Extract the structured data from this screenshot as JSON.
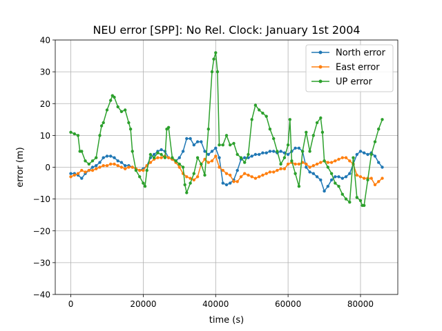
{
  "chart_data": {
    "type": "line",
    "title": "NEU error [SPP]: No Rel. Clock: January 1st 2004",
    "xlabel": "time (s)",
    "ylabel": "error (m)",
    "xlim": [
      -4300,
      90300
    ],
    "ylim": [
      -40,
      40
    ],
    "xticks": [
      0,
      20000,
      40000,
      60000,
      80000
    ],
    "yticks": [
      -40,
      -30,
      -20,
      -10,
      0,
      10,
      20,
      30,
      40
    ],
    "xtick_labels": [
      "0",
      "20000",
      "40000",
      "60000",
      "80000"
    ],
    "ytick_labels": [
      "−40",
      "−30",
      "−20",
      "−10",
      "0",
      "10",
      "20",
      "30",
      "40"
    ],
    "grid": true,
    "legend_position": "top-right",
    "series": [
      {
        "name": "North error",
        "color": "#1f77b4",
        "x": [
          0,
          1000,
          2000,
          3000,
          4000,
          5000,
          6000,
          7000,
          8000,
          9000,
          10000,
          11000,
          12000,
          13000,
          14000,
          15000,
          16000,
          17000,
          18000,
          19000,
          20000,
          21000,
          22000,
          23000,
          24000,
          25000,
          26000,
          27000,
          28000,
          29000,
          30000,
          31000,
          32000,
          33000,
          34000,
          35000,
          36000,
          37000,
          38000,
          39000,
          40000,
          41000,
          42000,
          43000,
          44000,
          45000,
          46000,
          47000,
          48000,
          49000,
          50000,
          51000,
          52000,
          53000,
          54000,
          55000,
          56000,
          57000,
          58000,
          59000,
          60000,
          61000,
          62000,
          63000,
          64000,
          65000,
          66000,
          67000,
          68000,
          69000,
          70000,
          71000,
          72000,
          73000,
          74000,
          75000,
          76000,
          77000,
          78000,
          79000,
          80000,
          81000,
          82000,
          83000,
          84000,
          85000,
          86000
        ],
        "values": [
          -2,
          -2,
          -2.5,
          -3.5,
          -2,
          -1,
          0,
          0.5,
          1.5,
          3,
          3.5,
          3.5,
          3,
          2,
          1.5,
          0.5,
          0.5,
          0,
          -0.5,
          -1,
          -0.5,
          0.5,
          3,
          4,
          5,
          5.5,
          5,
          3,
          2.5,
          2,
          3,
          5,
          9,
          9,
          7,
          8,
          8,
          5,
          4,
          5,
          6,
          3,
          -5,
          -5.5,
          -5,
          -4,
          -1,
          2.5,
          3,
          3,
          3.5,
          4,
          4,
          4.5,
          4.5,
          5,
          5,
          4.5,
          5,
          4.5,
          4,
          5,
          6,
          6,
          5,
          0,
          -1.5,
          -2,
          -3,
          -4,
          -7.5,
          -6,
          -4,
          -3,
          -3,
          -3.5,
          -3,
          -2,
          1,
          4,
          5,
          4.5,
          4,
          4.5,
          3.5,
          1.5,
          0
        ]
      },
      {
        "name": "East error",
        "color": "#ff7f0e",
        "x": [
          0,
          1000,
          2000,
          3000,
          4000,
          5000,
          6000,
          7000,
          8000,
          9000,
          10000,
          11000,
          12000,
          13000,
          14000,
          15000,
          16000,
          17000,
          18000,
          19000,
          20000,
          21000,
          22000,
          23000,
          24000,
          25000,
          26000,
          27000,
          28000,
          29000,
          30000,
          31000,
          32000,
          33000,
          34000,
          35000,
          36000,
          37000,
          38000,
          39000,
          40000,
          41000,
          42000,
          43000,
          44000,
          45000,
          46000,
          47000,
          48000,
          49000,
          50000,
          51000,
          52000,
          53000,
          54000,
          55000,
          56000,
          57000,
          58000,
          59000,
          60000,
          61000,
          62000,
          63000,
          64000,
          65000,
          66000,
          67000,
          68000,
          69000,
          70000,
          71000,
          72000,
          73000,
          74000,
          75000,
          76000,
          77000,
          78000,
          79000,
          80000,
          81000,
          82000,
          83000,
          84000,
          85000,
          86000
        ],
        "values": [
          -3,
          -2.5,
          -2,
          -1,
          -1.5,
          -1,
          -1,
          -0.5,
          0,
          0.5,
          0.5,
          1,
          1,
          0.5,
          0,
          -0.5,
          0,
          0,
          -0.5,
          -1,
          -1,
          0.5,
          1.5,
          2.5,
          3,
          3,
          3.5,
          3,
          2.5,
          1.5,
          0,
          -2,
          -3,
          -3.5,
          -4,
          -3,
          1,
          2.5,
          1.5,
          2,
          3.5,
          0,
          -1,
          -2,
          -2.5,
          -4.5,
          -4.5,
          -3,
          -2,
          -2.5,
          -3,
          -3.5,
          -3,
          -2.5,
          -2,
          -1.5,
          -1.5,
          -1,
          -0.5,
          -0.5,
          1,
          1.5,
          1,
          1,
          1.5,
          1,
          0,
          0.5,
          1,
          1.5,
          2,
          1.5,
          1.5,
          2,
          2.5,
          3,
          3,
          2,
          1,
          -2.5,
          -3,
          -3.5,
          -3.5,
          -3.5,
          -5.5,
          -4.5,
          -3.5
        ]
      },
      {
        "name": "UP error",
        "color": "#2ca02c",
        "x": [
          0,
          1000,
          2000,
          2500,
          3000,
          4000,
          5000,
          6000,
          7000,
          8000,
          8500,
          9000,
          10000,
          11000,
          11500,
          12000,
          13000,
          14000,
          15000,
          16000,
          16500,
          17000,
          18000,
          19000,
          20000,
          20500,
          21000,
          22000,
          23000,
          24000,
          25000,
          26000,
          26500,
          27000,
          28000,
          29000,
          30000,
          31000,
          31500,
          32000,
          33000,
          34000,
          35000,
          36000,
          37000,
          38000,
          39000,
          39500,
          40000,
          40500,
          41000,
          42000,
          43000,
          44000,
          45000,
          46000,
          47000,
          48000,
          49000,
          50000,
          51000,
          52000,
          53000,
          54000,
          55000,
          56000,
          57000,
          58000,
          59000,
          60000,
          60500,
          61000,
          62000,
          63000,
          64000,
          65000,
          66000,
          67000,
          68000,
          69000,
          69500,
          70000,
          71000,
          72000,
          73000,
          74000,
          75000,
          76000,
          77000,
          78000,
          79000,
          80000,
          80500,
          81000,
          82000,
          83000,
          84000,
          85000,
          86000
        ],
        "values": [
          11,
          10.5,
          10,
          5,
          5,
          2,
          1,
          2,
          3,
          10,
          13,
          14,
          18,
          21,
          22.5,
          22,
          19,
          17.5,
          18,
          14,
          12,
          5,
          -1,
          -3,
          -5,
          -6,
          -1,
          4,
          3,
          4.5,
          4,
          3,
          12,
          12.5,
          3,
          2,
          1,
          0,
          -5.5,
          -8,
          -5,
          -2,
          3,
          1,
          -2.5,
          12,
          30,
          34,
          36,
          30,
          7,
          7,
          10,
          7,
          7.5,
          4,
          3,
          1.5,
          4,
          15,
          19.5,
          18,
          17,
          16,
          12,
          9,
          5,
          1,
          3,
          7,
          15,
          2,
          -2,
          -6,
          5,
          11,
          5,
          10,
          14,
          15.5,
          11,
          2,
          0,
          -2,
          -5,
          -6,
          -8.5,
          -10,
          -11,
          3,
          -9.5,
          -10.5,
          -12,
          -12,
          -4,
          4,
          8,
          12,
          15
        ]
      }
    ]
  }
}
